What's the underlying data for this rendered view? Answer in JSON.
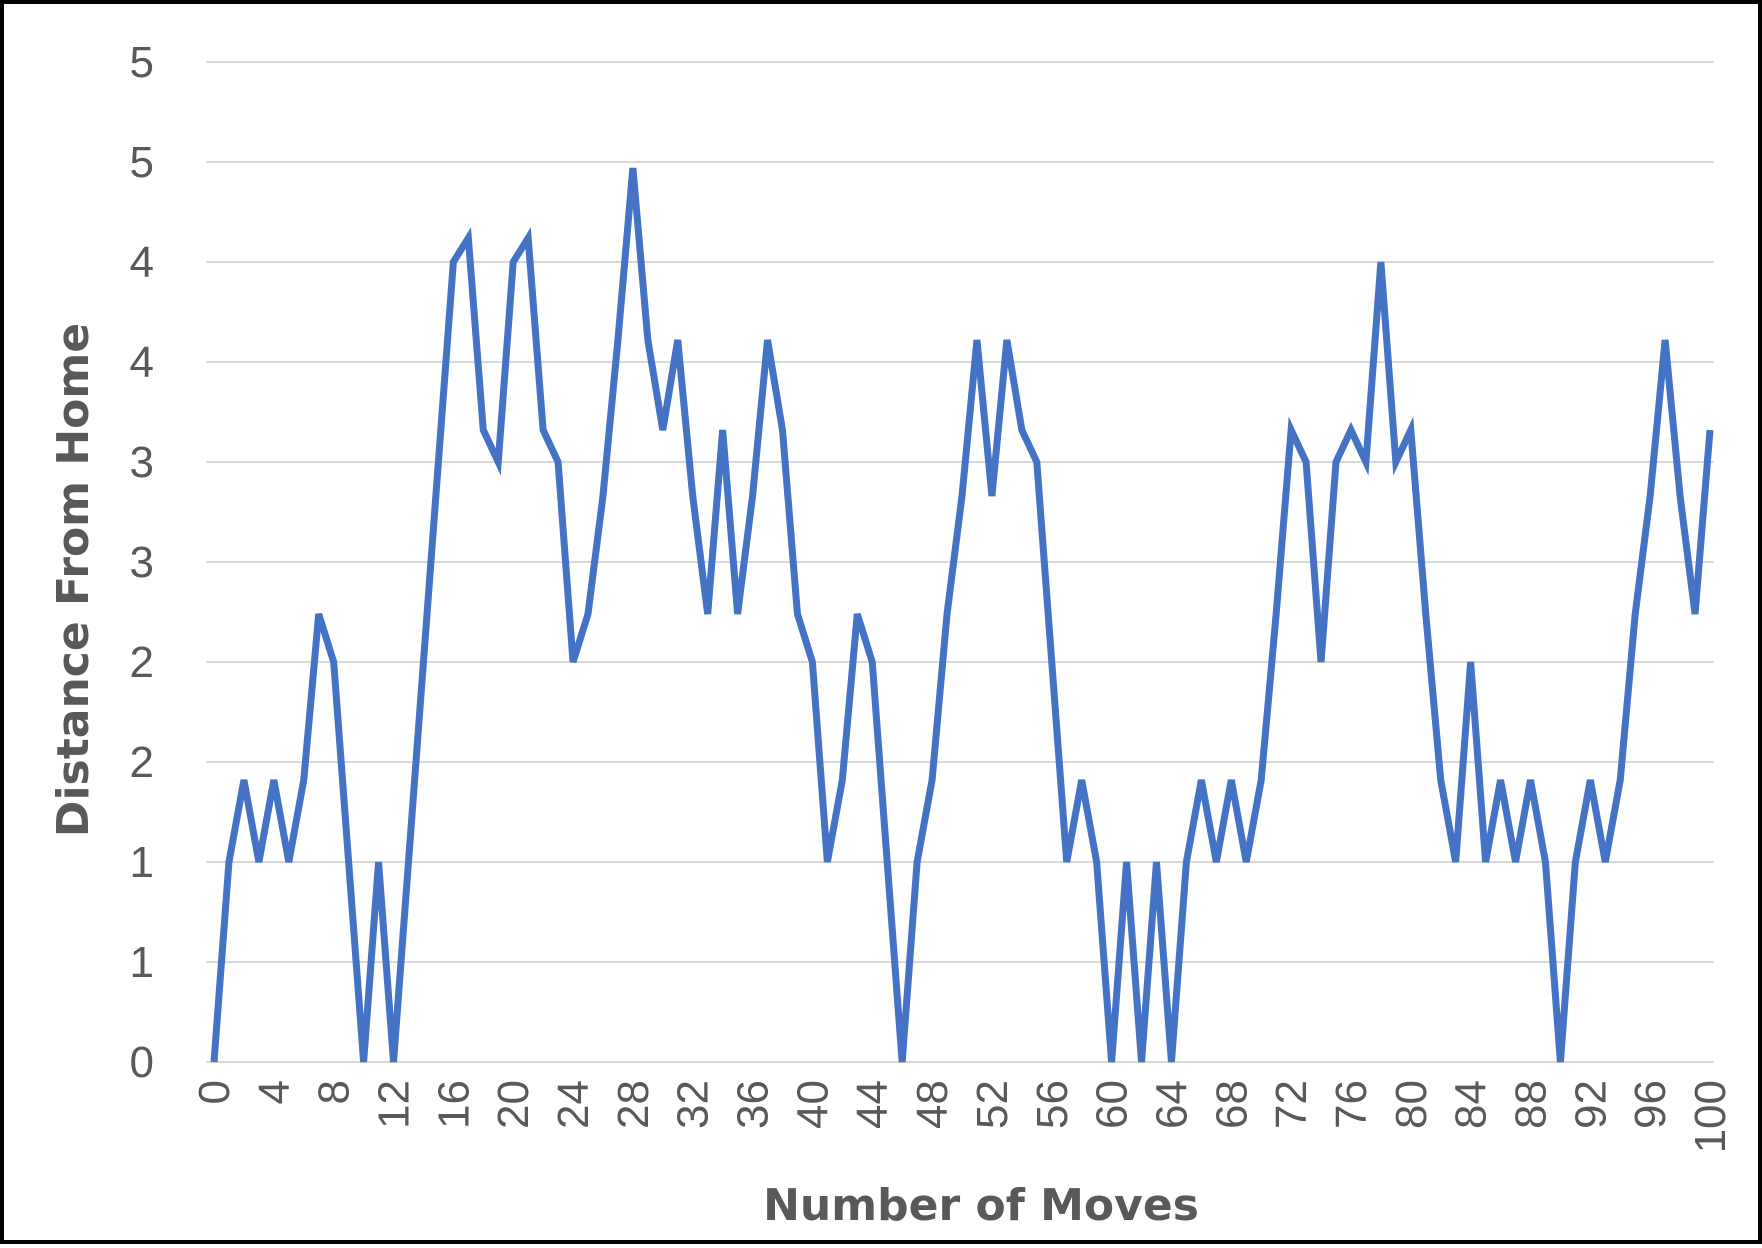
{
  "chart_data": {
    "type": "line",
    "title": "",
    "xlabel": "Number of Moves",
    "ylabel": "Distance From Home",
    "xlim": [
      0,
      100
    ],
    "ylim": [
      0,
      5
    ],
    "x_ticks": [
      "0",
      "4",
      "8",
      "12",
      "16",
      "20",
      "24",
      "28",
      "32",
      "36",
      "40",
      "44",
      "48",
      "52",
      "56",
      "60",
      "64",
      "68",
      "72",
      "76",
      "80",
      "84",
      "88",
      "92",
      "96",
      "100"
    ],
    "y_tick_labels": [
      "0",
      "1",
      "1",
      "2",
      "2",
      "3",
      "3",
      "4",
      "4",
      "5",
      "5"
    ],
    "grid": true,
    "legend": "none",
    "colors": {
      "line": "#4472C4",
      "grid": "#D9D9D9",
      "text": "#595959",
      "border": "#000000"
    },
    "series": [
      {
        "values": [
          0,
          1,
          1.41,
          1,
          1.41,
          1,
          1.41,
          2.24,
          2,
          1,
          0,
          1,
          0,
          1,
          2,
          3,
          4,
          4.12,
          3.16,
          3,
          4,
          4.12,
          3.16,
          3,
          2,
          2.24,
          2.83,
          3.61,
          4.47,
          3.61,
          3.16,
          3.61,
          2.83,
          2.24,
          3.16,
          2.24,
          2.83,
          3.61,
          3.16,
          2.24,
          2,
          1,
          1.41,
          2.24,
          2,
          1,
          0,
          1,
          1.41,
          2.24,
          2.83,
          3.61,
          2.83,
          3.61,
          3.16,
          3,
          2,
          1,
          1.41,
          1,
          0,
          1,
          0,
          1,
          0,
          1,
          1.41,
          1,
          1.41,
          1,
          1.41,
          2.24,
          3.16,
          3,
          2,
          3,
          3.16,
          3,
          4,
          3,
          3.16,
          2.24,
          1.41,
          1,
          2,
          1,
          1.41,
          1,
          1.41,
          1,
          0,
          1,
          1.41,
          1,
          1.41,
          2.24,
          2.83,
          3.61,
          2.83,
          2.24,
          3.16
        ]
      }
    ]
  }
}
